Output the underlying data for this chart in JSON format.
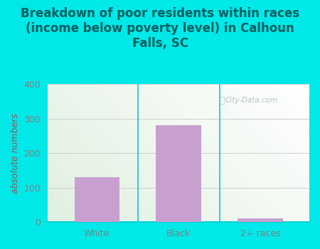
{
  "categories": [
    "White",
    "Black",
    "2+ races"
  ],
  "values": [
    130,
    281,
    10
  ],
  "bar_color": "#c8a0d0",
  "title": "Breakdown of poor residents within races\n(income below poverty level) in Calhoun\nFalls, SC",
  "ylabel": "absolute numbers",
  "ylim": [
    0,
    400
  ],
  "yticks": [
    0,
    100,
    200,
    300,
    400
  ],
  "background_color": "#00e8e8",
  "plot_bg_color_topleft": "#d8f0d8",
  "plot_bg_color_topright": "#f0fff8",
  "plot_bg_color_bottomleft": "#d8f0d8",
  "plot_bg_color_bottomright": "#ffffff",
  "grid_color": "#c8c8c8",
  "watermark": "City-Data.com",
  "title_fontsize": 12,
  "title_color": "#006060",
  "ylabel_fontsize": 9,
  "ylabel_color": "#806060",
  "tick_fontsize": 9,
  "tick_color": "#808080",
  "bar_width": 0.55,
  "separator_color": "#00d0d0"
}
